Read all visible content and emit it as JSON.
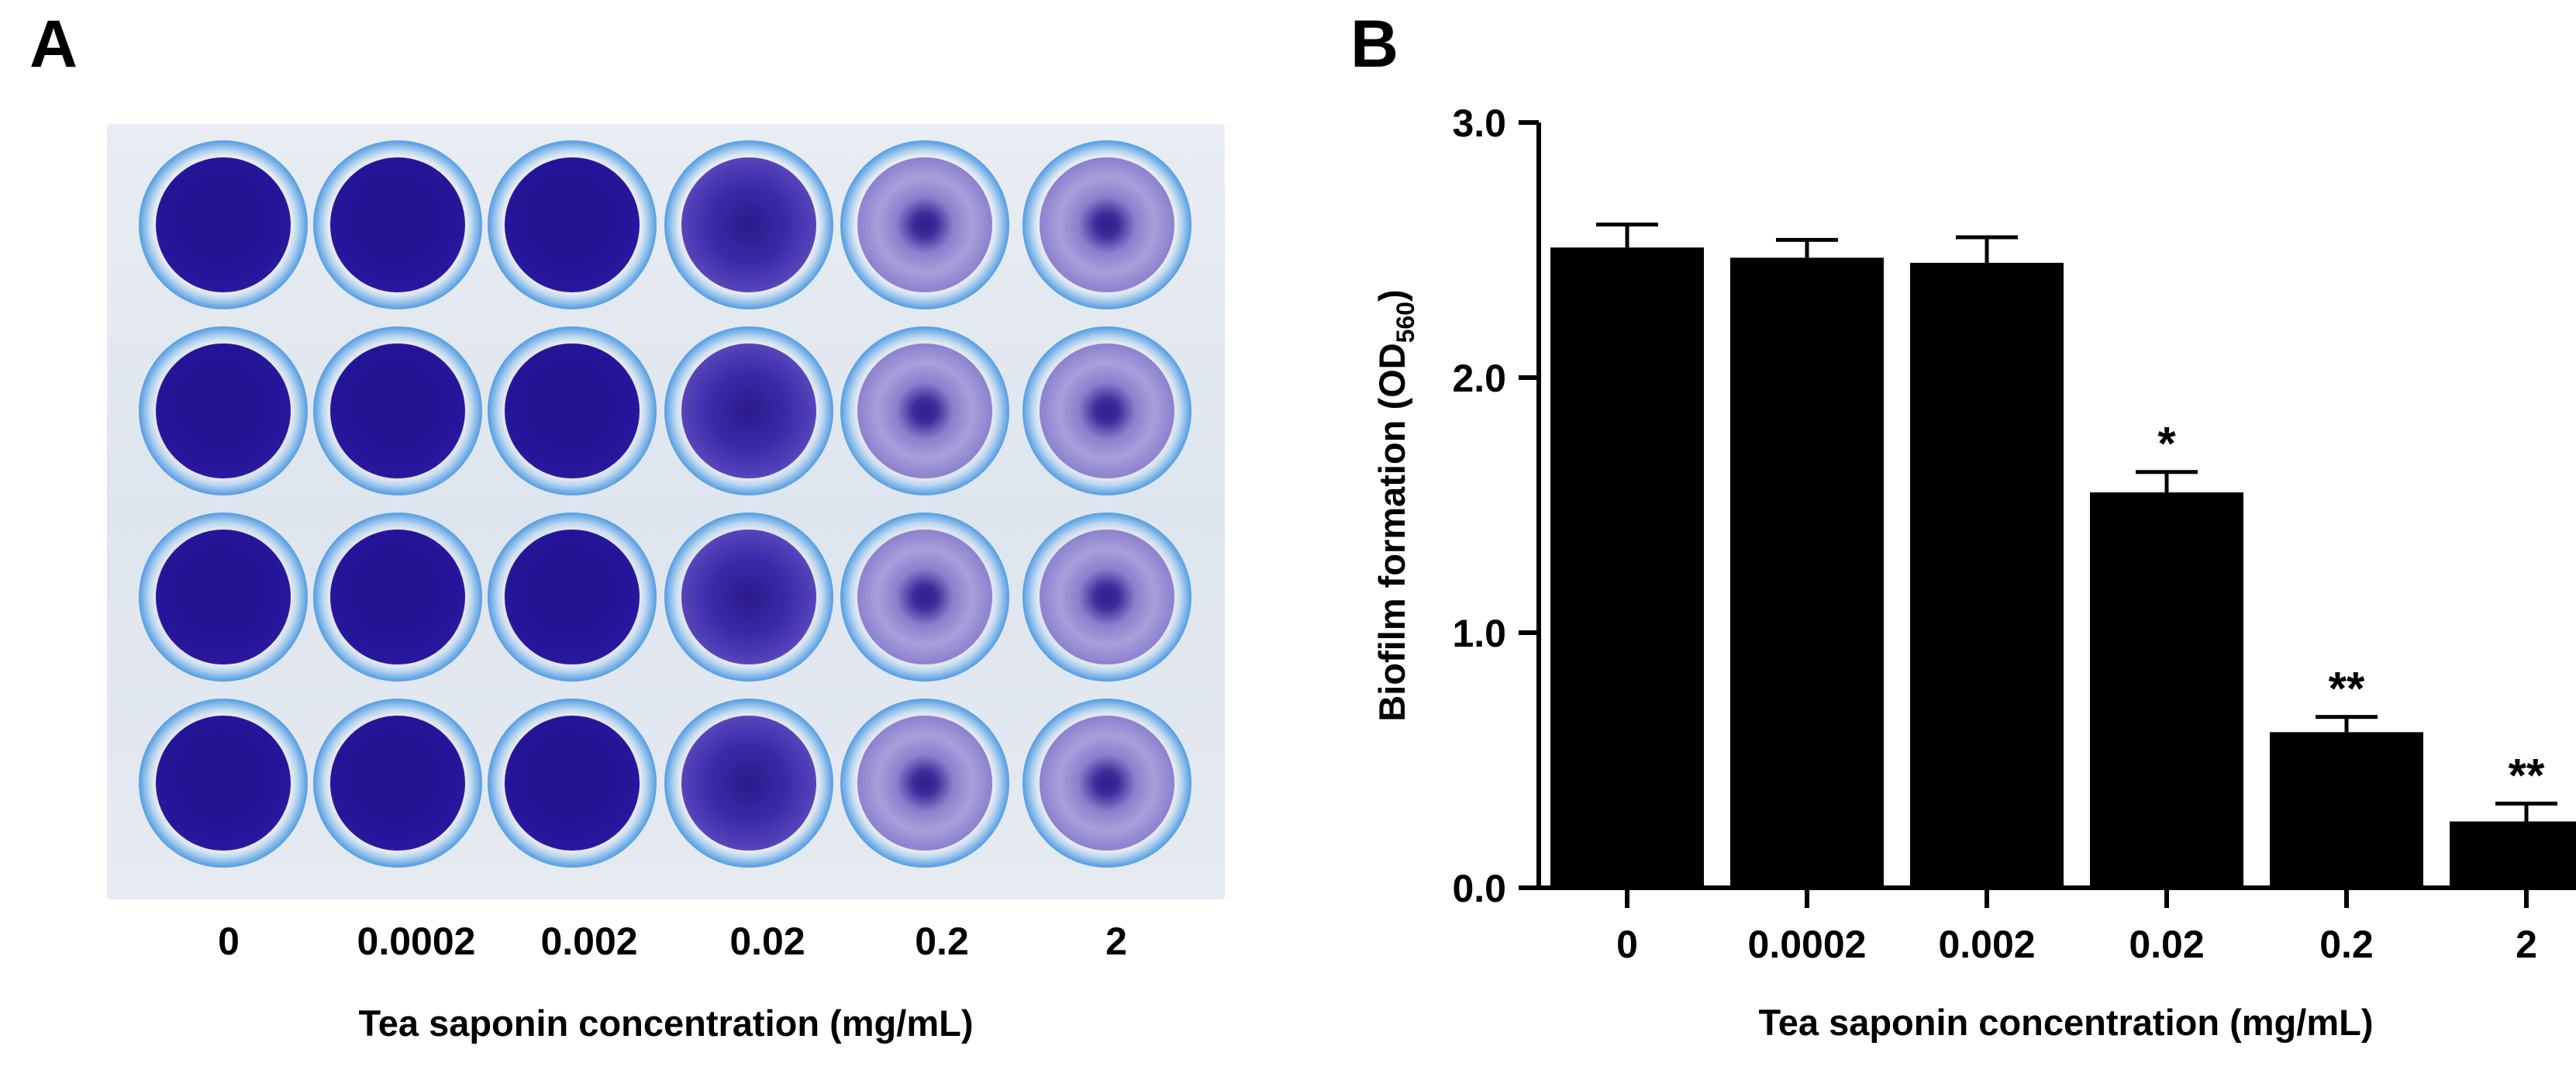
{
  "panels": {
    "a_letter": "A",
    "b_letter": "B"
  },
  "plate": {
    "columns": [
      "0",
      "0.0002",
      "0.002",
      "0.02",
      "0.2",
      "2"
    ],
    "xlabel": "Tea saponin concentration (mg/mL)",
    "rows": 4,
    "stain_levels": [
      "dark",
      "dark",
      "dark",
      "mid",
      "light",
      "light"
    ],
    "colors": {
      "stain_dark": "#241497",
      "stain_light": "#a79fdb",
      "rim": "#5aa0e3"
    }
  },
  "chart_data": {
    "type": "bar",
    "categories": [
      "0",
      "0.0002",
      "0.002",
      "0.02",
      "0.2",
      "2"
    ],
    "values": [
      2.51,
      2.47,
      2.45,
      1.55,
      0.61,
      0.26
    ],
    "errors": [
      0.09,
      0.07,
      0.1,
      0.08,
      0.06,
      0.07
    ],
    "significance": [
      "",
      "",
      "",
      "*",
      "**",
      "**"
    ],
    "xlabel": "Tea saponin concentration (mg/mL)",
    "ylabel_main": "Biofilm formation (OD",
    "ylabel_sub": "560",
    "ylabel_close": ")",
    "ylim": [
      0,
      3.0
    ],
    "yticks": [
      "0.0",
      "1.0",
      "2.0",
      "3.0"
    ],
    "bar_color": "#000000",
    "grid": false
  }
}
